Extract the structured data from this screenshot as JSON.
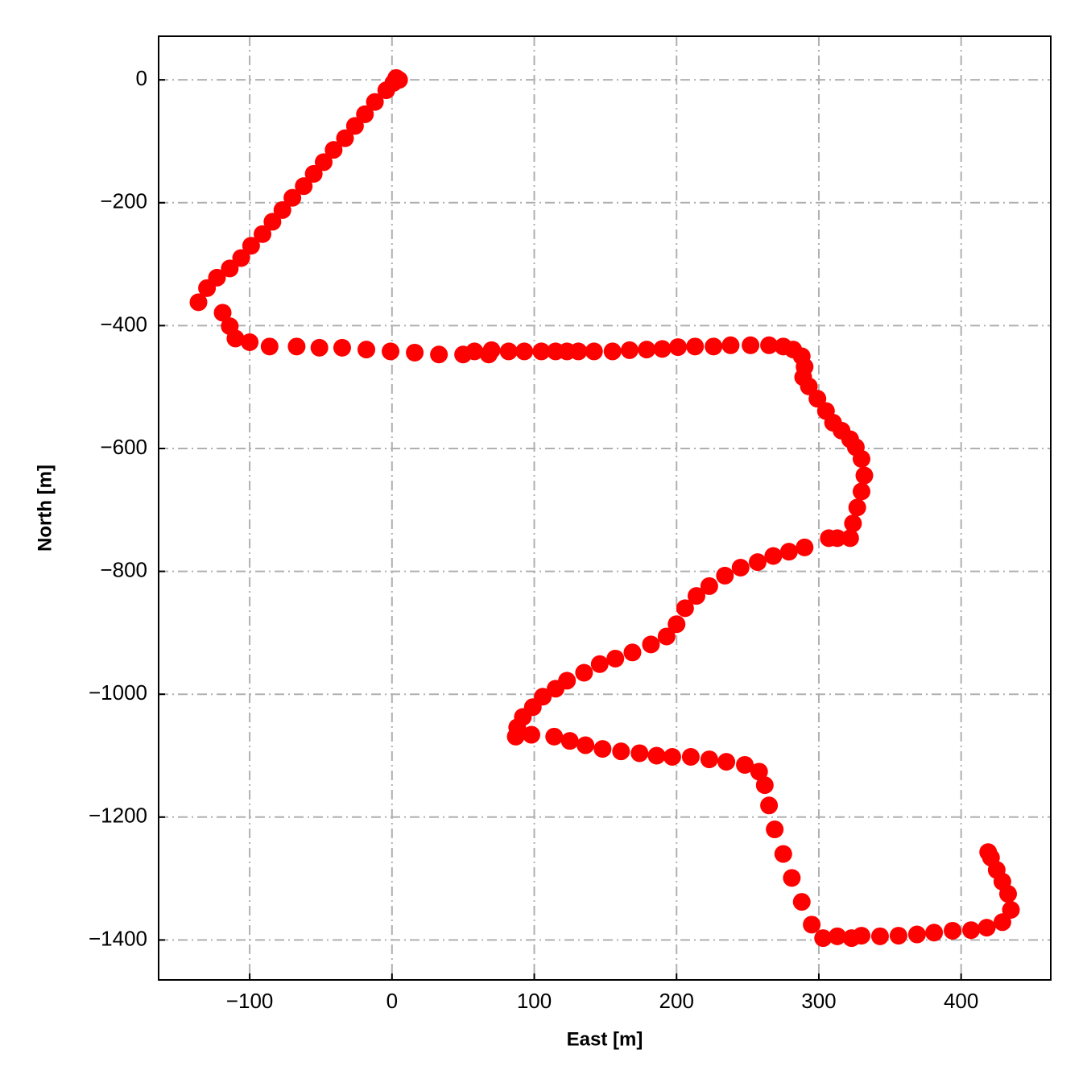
{
  "chart_data": {
    "type": "scatter",
    "x_label": "East [m]",
    "y_label": "North [m]",
    "color": "#ff0000",
    "grid": true,
    "xlim": [
      -164,
      463
    ],
    "ylim": [
      -1465,
      71
    ],
    "xticks": [
      {
        "value": -100,
        "label": "−100"
      },
      0,
      100,
      200,
      300,
      400
    ],
    "yticks": [
      0,
      {
        "value": -200,
        "label": "−200"
      },
      {
        "value": -400,
        "label": "−400"
      },
      {
        "value": -600,
        "label": "−600"
      },
      {
        "value": -800,
        "label": "−800"
      },
      {
        "value": -1000,
        "label": "−1000"
      },
      {
        "value": -1200,
        "label": "−1200"
      },
      {
        "value": -1400,
        "label": "−1400"
      }
    ],
    "x": [
      5,
      3,
      1,
      -4,
      -12,
      -19,
      -26,
      -33,
      -41,
      -48,
      -55,
      -62,
      -70,
      -77,
      -84,
      -91,
      -99,
      -106,
      -114,
      -123,
      -130,
      -136,
      -119,
      -114,
      -110,
      -100,
      -86,
      -67,
      -51,
      -35,
      -18,
      -1,
      16,
      33,
      50,
      58,
      68,
      70,
      82,
      93,
      105,
      115,
      123,
      131,
      142,
      155,
      167,
      179,
      190,
      201,
      213,
      226,
      238,
      252,
      265,
      275,
      282,
      288,
      290,
      289,
      293,
      299,
      305,
      310,
      316,
      322,
      326,
      330,
      332,
      330,
      327,
      324,
      322,
      313,
      307,
      290,
      279,
      268,
      257,
      245,
      234,
      223,
      214,
      206,
      200,
      193,
      182,
      169,
      157,
      146,
      135,
      123,
      115,
      106,
      99,
      92,
      88,
      87,
      98,
      114,
      125,
      136,
      148,
      161,
      174,
      186,
      197,
      210,
      223,
      235,
      248,
      258,
      262,
      265,
      269,
      275,
      281,
      288,
      295,
      303,
      313,
      323,
      330,
      343,
      356,
      369,
      381,
      394,
      407,
      418,
      429,
      435,
      433,
      429,
      425,
      421,
      419
    ],
    "y": [
      0,
      3,
      -5,
      -17,
      -36,
      -56,
      -75,
      -95,
      -114,
      -134,
      -153,
      -173,
      -192,
      -212,
      -231,
      -251,
      -270,
      -290,
      -307,
      -322,
      -339,
      -362,
      -379,
      -401,
      -421,
      -427,
      -434,
      -434,
      -436,
      -436,
      -439,
      -442,
      -444,
      -447,
      -447,
      -442,
      -447,
      -440,
      -442,
      -442,
      -442,
      -442,
      -442,
      -442,
      -442,
      -442,
      -440,
      -439,
      -438,
      -435,
      -434,
      -434,
      -432,
      -432,
      -432,
      -434,
      -439,
      -450,
      -467,
      -484,
      -499,
      -519,
      -539,
      -558,
      -571,
      -585,
      -598,
      -617,
      -644,
      -670,
      -696,
      -722,
      -746,
      -746,
      -746,
      -761,
      -768,
      -775,
      -785,
      -794,
      -807,
      -824,
      -840,
      -860,
      -886,
      -906,
      -919,
      -932,
      -942,
      -951,
      -965,
      -978,
      -991,
      -1004,
      -1021,
      -1037,
      -1054,
      -1069,
      -1066,
      -1069,
      -1076,
      -1083,
      -1089,
      -1093,
      -1096,
      -1100,
      -1102,
      -1102,
      -1106,
      -1110,
      -1115,
      -1126,
      -1148,
      -1181,
      -1220,
      -1260,
      -1299,
      -1338,
      -1375,
      -1397,
      -1394,
      -1397,
      -1393,
      -1394,
      -1393,
      -1391,
      -1388,
      -1385,
      -1384,
      -1380,
      -1371,
      -1351,
      -1325,
      -1305,
      -1286,
      -1266,
      -1257
    ]
  }
}
